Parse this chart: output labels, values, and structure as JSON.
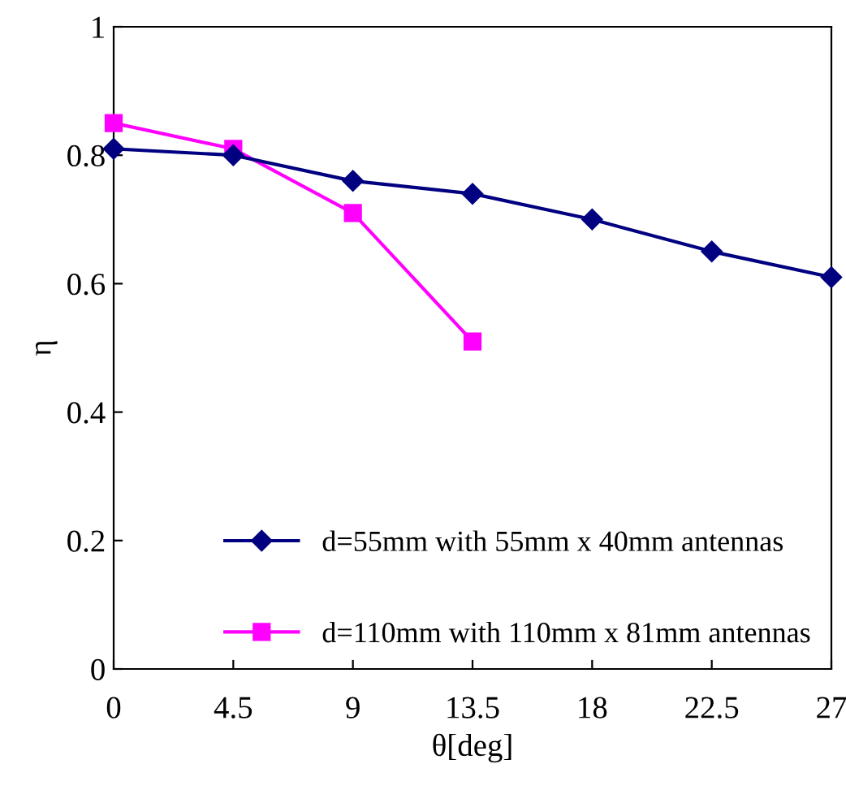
{
  "chart_data": {
    "type": "line",
    "xlabel": "θ[deg]",
    "ylabel": "η",
    "xlim": [
      0,
      27
    ],
    "xticks": [
      0,
      4.5,
      9,
      13.5,
      18,
      22.5,
      27
    ],
    "ylim": [
      0,
      1
    ],
    "yticks": [
      0,
      0.2,
      0.4,
      0.6,
      0.8,
      1
    ],
    "grid": false,
    "legend": "bottom right",
    "line_style": "solid",
    "series": [
      {
        "name": "d=55mm with 55mm x 40mm antennas",
        "color": "#000080",
        "marker": "diamond",
        "x": [
          0,
          4.5,
          9,
          13.5,
          18,
          22.5,
          27
        ],
        "values": [
          0.81,
          0.8,
          0.76,
          0.74,
          0.7,
          0.65,
          0.61
        ]
      },
      {
        "name": "d=110mm with 110mm x 81mm antennas",
        "color": "#ff00ff",
        "marker": "square",
        "x": [
          0,
          4.5,
          9,
          13.5
        ],
        "values": [
          0.85,
          0.81,
          0.71,
          0.51
        ]
      }
    ]
  }
}
